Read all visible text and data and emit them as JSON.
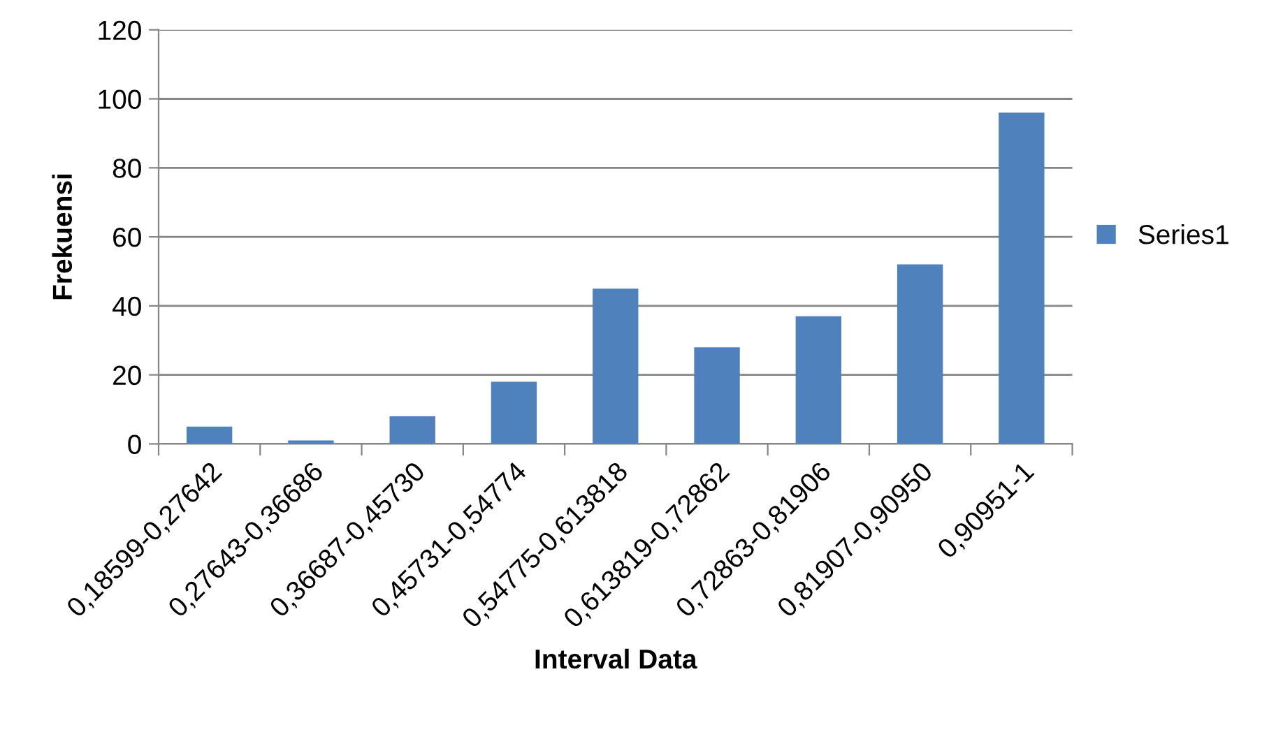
{
  "chart_data": {
    "type": "bar",
    "xlabel": "Interval Data",
    "ylabel": "Frekuensi",
    "categories": [
      "0,18599-0,27642",
      "0,27643-0,36686",
      "0,36687-0,45730",
      "0,45731-0,54774",
      "0,54775-0,613818",
      "0,613819-0,72862",
      "0,72863-0,81906",
      "0,81907-0,90950",
      "0,90951-1"
    ],
    "series": [
      {
        "name": "Series1",
        "color": "#4f81bd",
        "values": [
          5,
          1,
          8,
          18,
          45,
          28,
          37,
          52,
          96
        ]
      }
    ],
    "ylim": [
      0,
      120
    ],
    "yticks": [
      0,
      20,
      40,
      60,
      80,
      100,
      120
    ],
    "grid": "y",
    "legend": "right"
  }
}
